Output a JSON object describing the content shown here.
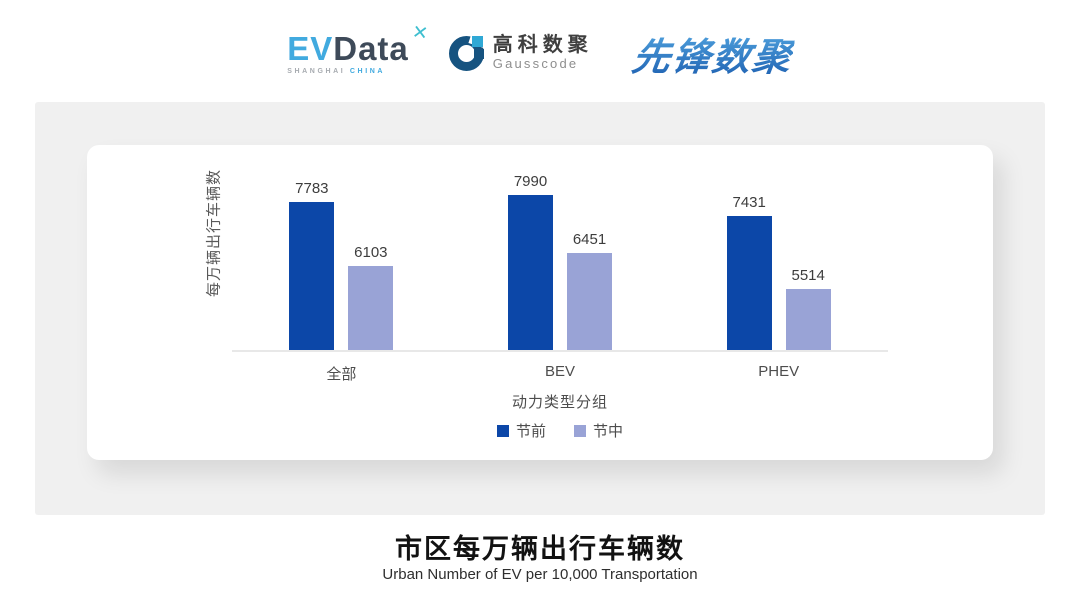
{
  "header": {
    "evdata_logo": {
      "ev": "EV",
      "data": "Data",
      "x_mark": "✕",
      "sub_left": "SHANGHAI",
      "sub_right": "CHINA"
    },
    "gausscode_logo": {
      "cn": "高科数聚",
      "en": "Gausscode"
    },
    "pioneer_logo": {
      "text": "先锋数聚"
    }
  },
  "chart_data": {
    "type": "bar",
    "categories": [
      "全部",
      "BEV",
      "PHEV"
    ],
    "series": [
      {
        "name": "节前",
        "color": "#0C47A8",
        "values": [
          7783,
          7990,
          7431
        ]
      },
      {
        "name": "节中",
        "color": "#99A3D6",
        "values": [
          6103,
          6451,
          5514
        ]
      }
    ],
    "xlabel": "动力类型分组",
    "ylabel": "每万辆出行车辆数",
    "ylim": [
      3900,
      8900
    ],
    "grid": false,
    "legend_position": "bottom",
    "data_labels": true
  },
  "footer": {
    "title": "市区每万辆出行车辆数",
    "subtitle": "Urban Number of EV per 10,000 Transportation"
  },
  "colors": {
    "pre_holiday_bar": "#0C47A8",
    "during_holiday_bar": "#99A3D6",
    "panel_bg": "#F0F0F0",
    "axis_line": "#E8E8E8"
  }
}
